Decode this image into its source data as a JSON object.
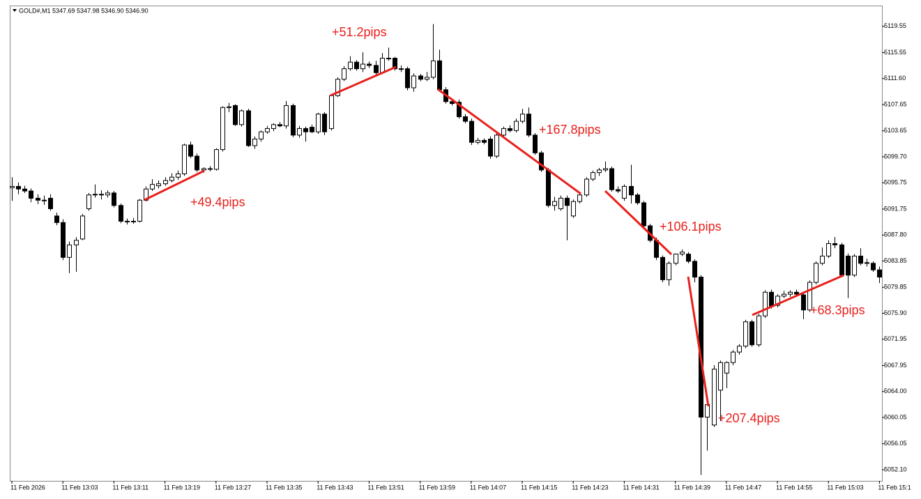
{
  "chart_data": {
    "type": "candlestick",
    "title": "GOLD#,M1  5347.69 5347.98 5346.90 5346.90",
    "categories": [
      "11 Feb 2026",
      null,
      null,
      null,
      null,
      null,
      null,
      null,
      "11 Feb 13:03",
      null,
      null,
      null,
      null,
      null,
      null,
      null,
      "11 Feb 13:11",
      null,
      null,
      null,
      null,
      null,
      null,
      null,
      "11 Feb 13:19",
      null,
      null,
      null,
      null,
      null,
      null,
      null,
      "11 Feb 13:27",
      null,
      null,
      null,
      null,
      null,
      null,
      null,
      "11 Feb 13:35",
      null,
      null,
      null,
      null,
      null,
      null,
      null,
      "11 Feb 13:43",
      null,
      null,
      null,
      null,
      null,
      null,
      null,
      "11 Feb 13:51",
      null,
      null,
      null,
      null,
      null,
      null,
      null,
      "11 Feb 13:59",
      null,
      null,
      null,
      null,
      null,
      null,
      null,
      "11 Feb 14:07",
      null,
      null,
      null,
      null,
      null,
      null,
      null,
      "11 Feb 14:15",
      null,
      null,
      null,
      null,
      null,
      null,
      null,
      "11 Feb 14:23",
      null,
      null,
      null,
      null,
      null,
      null,
      null,
      "11 Feb 14:31",
      null,
      null,
      null,
      null,
      null,
      null,
      null,
      "11 Feb 14:39",
      null,
      null,
      null,
      null,
      null,
      null,
      null,
      "11 Feb 14:47",
      null,
      null,
      null,
      null,
      null,
      null,
      null,
      "11 Feb 14:55",
      null,
      null,
      null,
      null,
      null,
      null,
      null,
      "11 Feb 15:03",
      null,
      null,
      null,
      null,
      null,
      null,
      null,
      "11 Feb 15:1"
    ],
    "open": [
      5095.0,
      5095.2,
      5094.8,
      5094.5,
      5093.4,
      5093.1,
      5093.4,
      5090.7,
      5089.7,
      5084.4,
      5086.3,
      5087.2,
      5091.8,
      5093.9,
      5094.0,
      5093.9,
      5094.2,
      5092.3,
      5089.9,
      5089.8,
      5089.9,
      5093.1,
      5094.8,
      5095.3,
      5095.6,
      5096.1,
      5096.6,
      5097.1,
      5101.5,
      5099.8,
      5097.7,
      5097.9,
      5097.8,
      5100.8,
      5107.2,
      5107.5,
      5104.6,
      5106.7,
      5101.4,
      5102.4,
      5103.5,
      5104.0,
      5104.6,
      5104.4,
      5107.5,
      5103.0,
      5104.0,
      5104.2,
      5103.5,
      5106.2,
      5104.0,
      5109.0,
      5111.5,
      5113.1,
      5114.1,
      5113.1,
      5113.8,
      5113.6,
      5112.5,
      5114.7,
      5114.7,
      5113.1,
      5113.1,
      5110.2,
      5112.0,
      5111.5,
      5111.8,
      5114.3,
      5109.9,
      5108.1,
      5108.0,
      5105.8,
      5105.1,
      5101.9,
      5102.2,
      5102.4,
      5099.8,
      5103.0,
      5104.0,
      5103.7,
      5105.1,
      5106.2,
      5103.0,
      5100.3,
      5097.7,
      5092.3,
      5091.8,
      5093.4,
      5090.7,
      5092.9,
      5093.9,
      5096.3,
      5097.3,
      5097.7,
      5097.9,
      5094.7,
      5093.4,
      5095.2,
      5093.9,
      5092.7,
      5089.2,
      5087.0,
      5084.4,
      5081.0,
      5083.5,
      5084.9,
      5084.9,
      5083.8,
      5081.4,
      5060.1,
      5058.9,
      5064.2,
      5066.8,
      5068.4,
      5070.0,
      5070.9,
      5074.6,
      5071.1,
      5075.5,
      5079.1,
      5077.1,
      5078.5,
      5078.8,
      5079.1,
      5078.7,
      5076.4,
      5080.6,
      5083.5,
      5084.6,
      5086.5,
      5086.3,
      5084.6,
      5081.7,
      5084.6,
      5083.5,
      5083.5,
      5082.5
    ],
    "high": [
      5096.6,
      5095.8,
      5095.3,
      5094.9,
      5094.0,
      5093.8,
      5094.0,
      5091.2,
      5090.2,
      5086.8,
      5087.5,
      5091.0,
      5094.2,
      5095.5,
      5094.6,
      5094.6,
      5094.5,
      5092.6,
      5090.3,
      5090.4,
      5093.3,
      5095.2,
      5096.3,
      5096.1,
      5096.6,
      5097.2,
      5097.6,
      5101.7,
      5102.0,
      5100.2,
      5098.1,
      5098.3,
      5101.0,
      5107.4,
      5107.9,
      5107.7,
      5106.9,
      5107.0,
      5102.8,
      5103.7,
      5104.4,
      5104.8,
      5105.0,
      5108.2,
      5107.8,
      5104.4,
      5104.3,
      5104.6,
      5106.4,
      5106.5,
      5109.2,
      5111.8,
      5113.5,
      5115.0,
      5114.4,
      5115.6,
      5114.2,
      5114.3,
      5115.5,
      5116.3,
      5114.9,
      5113.6,
      5113.4,
      5112.4,
      5112.3,
      5112.6,
      5119.9,
      5116.0,
      5110.3,
      5108.6,
      5108.4,
      5106.2,
      5105.5,
      5102.6,
      5102.5,
      5102.8,
      5103.3,
      5104.3,
      5104.5,
      5105.5,
      5107.0,
      5107.2,
      5103.3,
      5100.6,
      5098.0,
      5093.6,
      5093.8,
      5093.8,
      5093.2,
      5094.2,
      5096.6,
      5097.6,
      5098.0,
      5099.0,
      5098.2,
      5095.2,
      5095.5,
      5098.5,
      5094.2,
      5093.0,
      5089.5,
      5087.4,
      5084.7,
      5083.8,
      5085.0,
      5085.6,
      5085.2,
      5084.1,
      5081.7,
      5062.4,
      5068.0,
      5068.7,
      5068.6,
      5070.3,
      5071.2,
      5074.9,
      5074.9,
      5075.8,
      5079.4,
      5079.5,
      5078.8,
      5079.3,
      5079.4,
      5079.5,
      5079.0,
      5080.9,
      5083.8,
      5085.9,
      5087.0,
      5087.5,
      5086.6,
      5085.0,
      5084.9,
      5085.8,
      5084.2,
      5083.8,
      5083.0
    ],
    "low": [
      5093.0,
      5094.0,
      5094.2,
      5092.8,
      5092.5,
      5092.4,
      5091.5,
      5089.3,
      5084.0,
      5082.0,
      5082.2,
      5087.0,
      5091.5,
      5093.5,
      5093.2,
      5093.5,
      5092.0,
      5089.6,
      5089.4,
      5089.5,
      5089.7,
      5092.9,
      5094.5,
      5094.9,
      5095.3,
      5095.8,
      5096.2,
      5096.8,
      5099.5,
      5097.4,
      5097.3,
      5097.5,
      5097.6,
      5100.5,
      5106.5,
      5104.4,
      5104.3,
      5101.2,
      5100.9,
      5102.0,
      5103.2,
      5103.6,
      5104.2,
      5104.0,
      5102.7,
      5102.6,
      5102.0,
      5103.3,
      5103.2,
      5103.0,
      5103.7,
      5108.8,
      5111.2,
      5112.8,
      5112.8,
      5112.6,
      5113.2,
      5112.2,
      5112.3,
      5114.3,
      5112.8,
      5112.6,
      5109.8,
      5109.6,
      5111.2,
      5111.2,
      5111.5,
      5109.6,
      5107.8,
      5107.5,
      5105.5,
      5104.8,
      5101.5,
      5101.6,
      5101.6,
      5099.4,
      5099.5,
      5102.7,
      5103.4,
      5103.4,
      5104.8,
      5102.7,
      5100.0,
      5097.4,
      5092.0,
      5091.5,
      5091.5,
      5087.0,
      5090.4,
      5092.6,
      5093.6,
      5096.0,
      5096.8,
      5097.4,
      5094.4,
      5094.2,
      5093.0,
      5092.6,
      5092.4,
      5088.9,
      5086.7,
      5084.0,
      5080.6,
      5080.1,
      5083.2,
      5084.6,
      5083.5,
      5080.6,
      5051.3,
      5055.0,
      5058.6,
      5059.5,
      5064.5,
      5068.0,
      5069.6,
      5070.6,
      5070.8,
      5070.8,
      5075.2,
      5076.6,
      5076.8,
      5078.2,
      5078.4,
      5078.5,
      5075.0,
      5076.1,
      5080.3,
      5083.2,
      5084.3,
      5085.8,
      5081.4,
      5078.2,
      5081.4,
      5083.2,
      5083.0,
      5082.2,
      5080.5
    ],
    "close": [
      5095.2,
      5094.8,
      5094.5,
      5093.4,
      5093.1,
      5093.1,
      5091.8,
      5089.7,
      5084.4,
      5086.3,
      5087.0,
      5090.7,
      5093.9,
      5094.0,
      5093.9,
      5094.2,
      5092.3,
      5089.9,
      5089.8,
      5089.9,
      5093.1,
      5094.8,
      5095.5,
      5095.6,
      5096.1,
      5096.6,
      5097.1,
      5101.5,
      5099.8,
      5097.7,
      5097.9,
      5097.8,
      5100.8,
      5107.2,
      5107.3,
      5104.6,
      5106.7,
      5101.4,
      5102.4,
      5103.5,
      5104.0,
      5104.6,
      5104.4,
      5107.5,
      5103.0,
      5104.0,
      5103.5,
      5103.5,
      5106.2,
      5103.5,
      5109.0,
      5111.5,
      5113.1,
      5114.1,
      5113.1,
      5113.8,
      5113.6,
      5112.5,
      5114.7,
      5114.6,
      5113.1,
      5113.0,
      5110.2,
      5112.0,
      5111.5,
      5111.8,
      5114.3,
      5109.9,
      5108.1,
      5107.8,
      5105.8,
      5105.1,
      5101.9,
      5102.2,
      5101.9,
      5099.8,
      5103.0,
      5104.0,
      5103.7,
      5105.1,
      5106.2,
      5103.0,
      5100.3,
      5097.7,
      5092.3,
      5092.9,
      5093.4,
      5092.3,
      5092.9,
      5093.9,
      5096.3,
      5097.3,
      5097.7,
      5097.9,
      5094.7,
      5094.5,
      5095.2,
      5093.9,
      5092.7,
      5089.2,
      5087.0,
      5084.4,
      5081.0,
      5083.5,
      5084.9,
      5085.2,
      5083.8,
      5081.4,
      5060.1,
      5062.0,
      5067.4,
      5068.4,
      5068.4,
      5070.0,
      5070.9,
      5074.6,
      5071.1,
      5075.5,
      5079.1,
      5076.9,
      5078.5,
      5078.8,
      5079.1,
      5078.8,
      5076.4,
      5080.6,
      5083.5,
      5084.6,
      5086.5,
      5086.3,
      5081.7,
      5081.7,
      5084.6,
      5083.5,
      5083.6,
      5082.5,
      5081.4
    ],
    "up_color": "#ffffff",
    "down_color": "#000000",
    "color": "#000000",
    "ylim": [
      5050.4,
      5122.6
    ],
    "yticks": [
      5119.55,
      5115.55,
      {
        "value": 5111.6,
        "label": "5111.60"
      },
      5107.65,
      5103.65,
      {
        "value": 5099.7,
        "label": "5099.70"
      },
      5095.75,
      5091.75,
      {
        "value": 5087.8,
        "label": "5087.80"
      },
      5083.85,
      5079.85,
      {
        "value": 5075.9,
        "label": "5075.90"
      },
      5071.95,
      5067.95,
      {
        "value": 5064,
        "label": "5064.00"
      },
      5060.05,
      5056.05,
      {
        "value": 5052.1,
        "label": "5052.10"
      }
    ],
    "grid": false,
    "annotations": [
      "+49.4pips",
      "+51.2pips",
      "+167.8pips",
      "+106.1pips",
      "+207.4pips",
      "+68.3pips"
    ],
    "annotation_color": "#e8201c"
  }
}
